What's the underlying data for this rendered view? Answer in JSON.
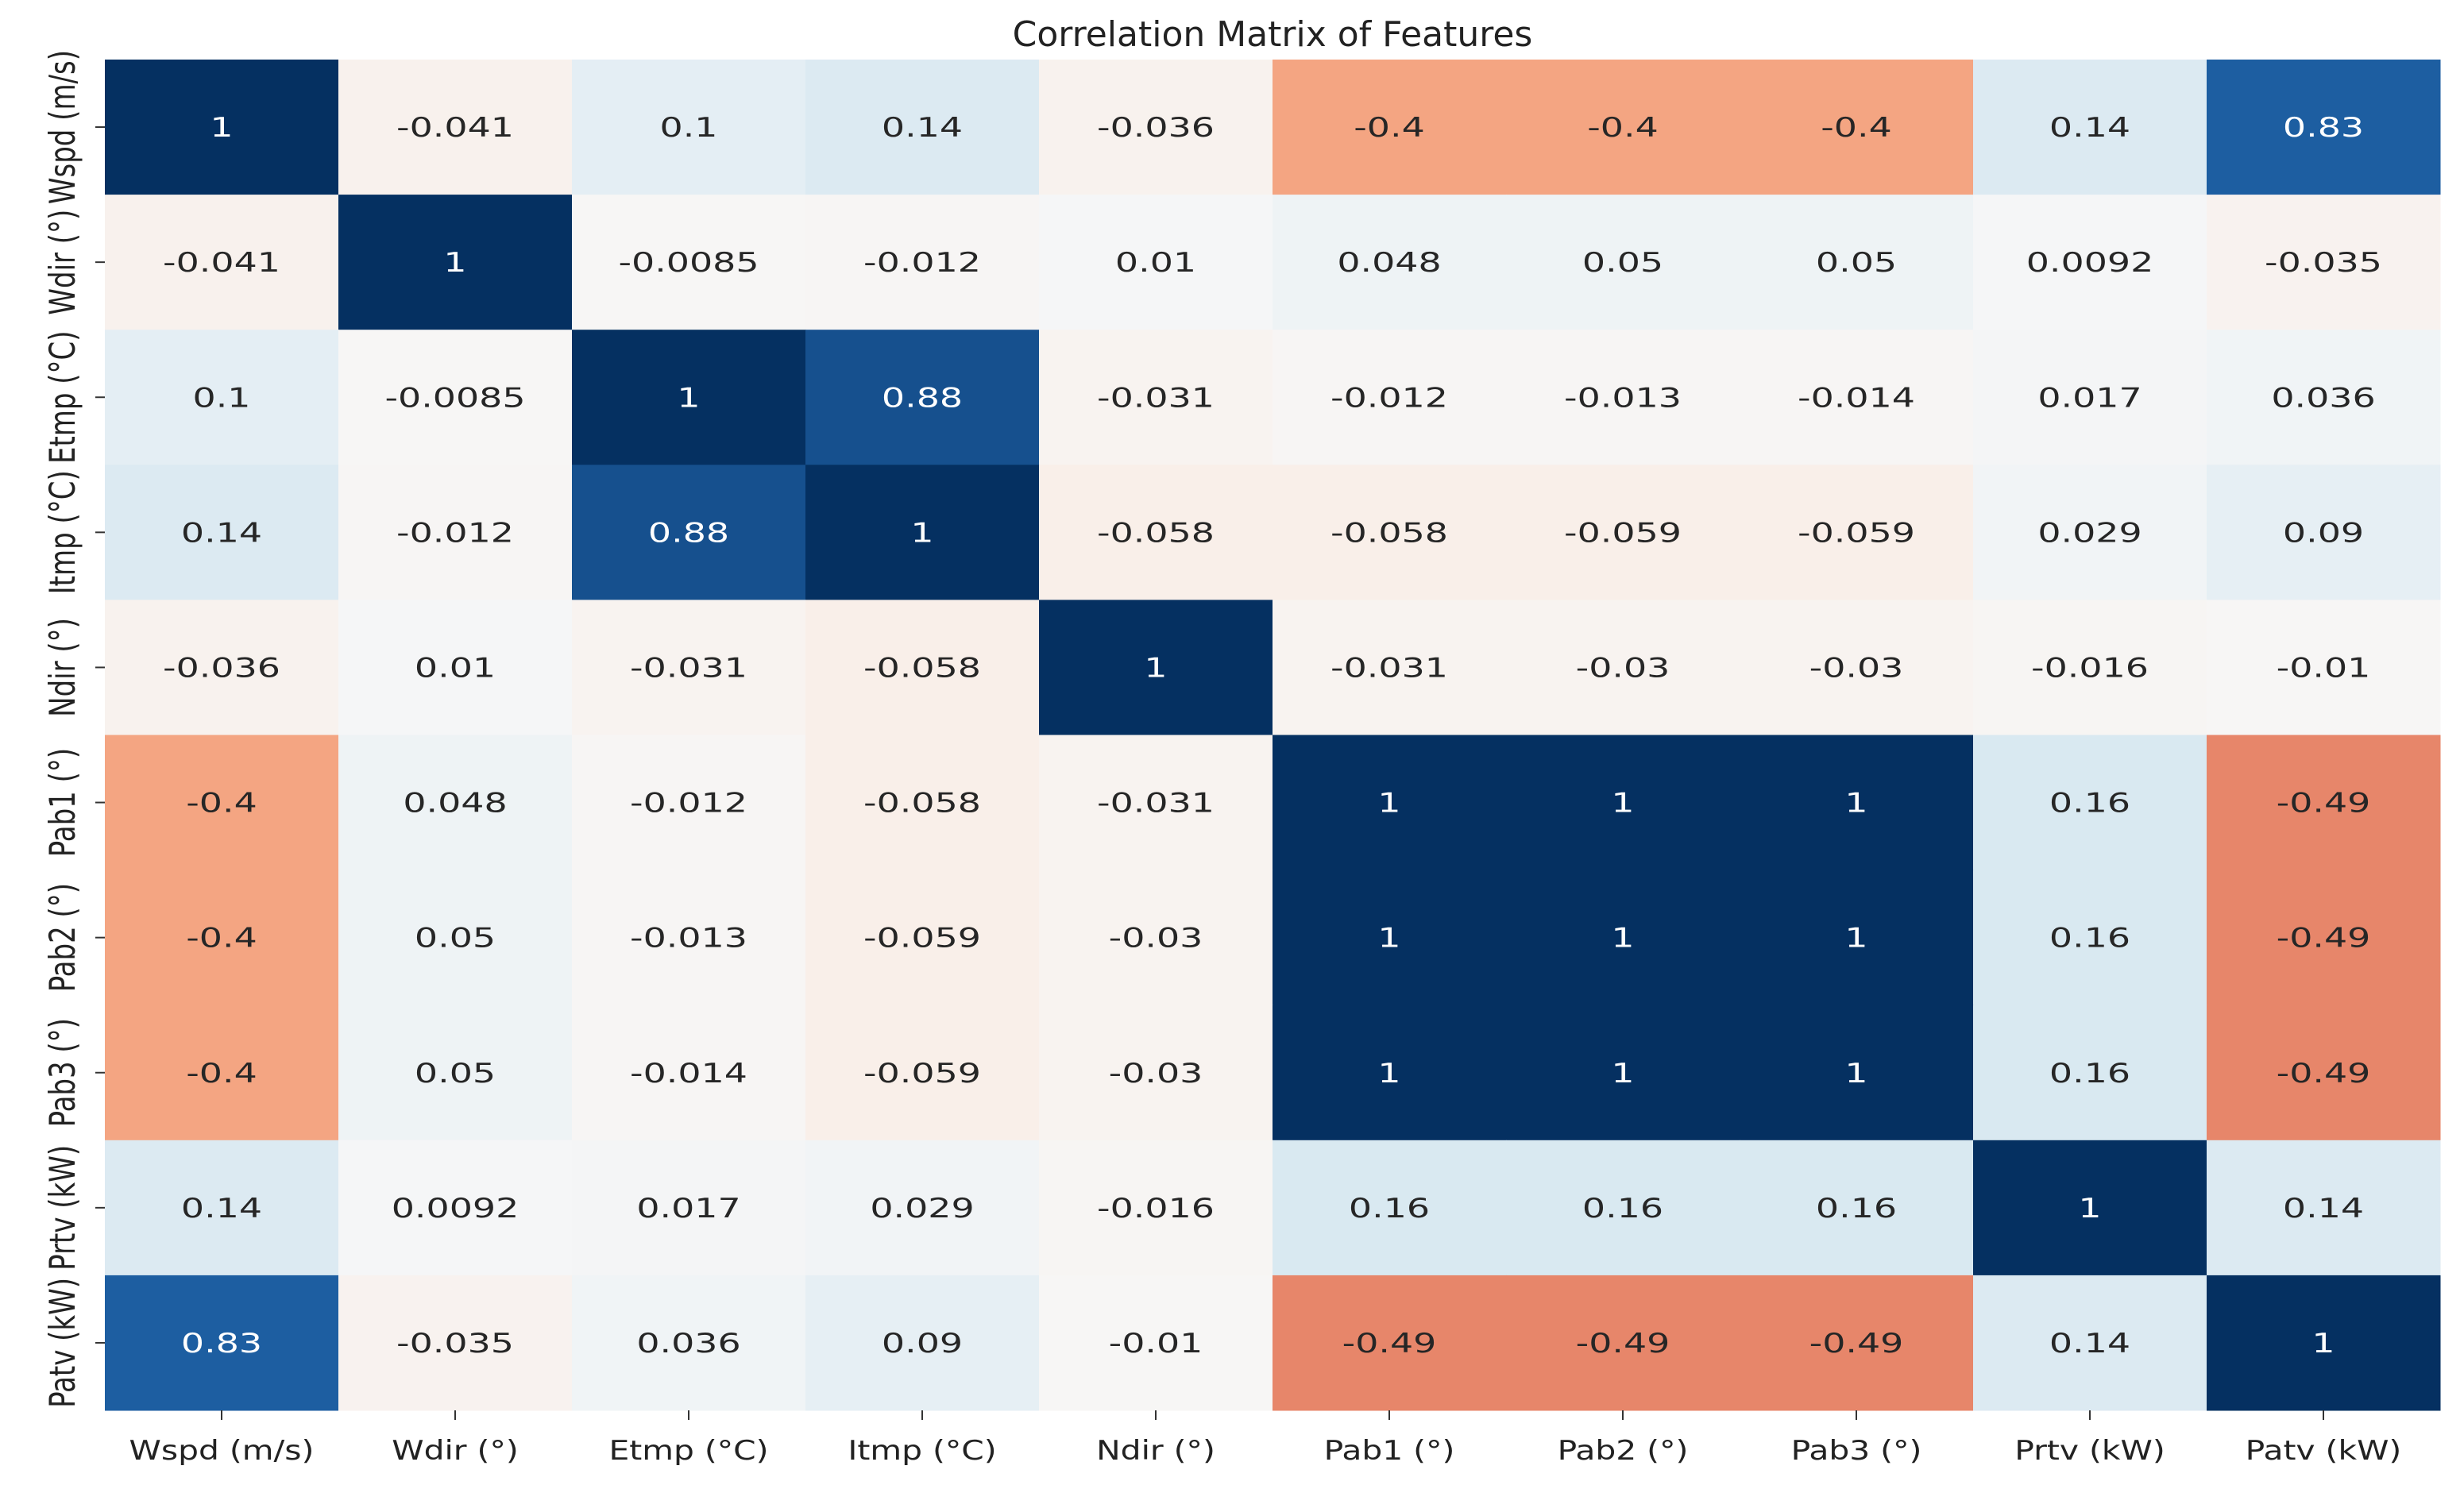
{
  "chart_data": {
    "type": "heatmap",
    "title": "Correlation Matrix of Features",
    "colormap": "RdBu",
    "vmin": -1,
    "vmax": 1,
    "colorbar": false,
    "x_labels": [
      "Wspd (m/s)",
      "Wdir (°)",
      "Etmp (°C)",
      "Itmp (°C)",
      "Ndir (°)",
      "Pab1 (°)",
      "Pab2 (°)",
      "Pab3 (°)",
      "Prtv (kW)",
      "Patv (kW)"
    ],
    "y_labels": [
      "Wspd (m/s)",
      "Wdir (°)",
      "Etmp (°C)",
      "Itmp (°C)",
      "Ndir (°)",
      "Pab1 (°)",
      "Pab2 (°)",
      "Pab3 (°)",
      "Prtv (kW)",
      "Patv (kW)"
    ],
    "values": [
      [
        1,
        -0.041,
        0.1,
        0.14,
        -0.036,
        -0.4,
        -0.4,
        -0.4,
        0.14,
        0.83
      ],
      [
        -0.041,
        1,
        -0.0085,
        -0.012,
        0.01,
        0.048,
        0.05,
        0.05,
        0.0092,
        -0.035
      ],
      [
        0.1,
        -0.0085,
        1,
        0.88,
        -0.031,
        -0.012,
        -0.013,
        -0.014,
        0.017,
        0.036
      ],
      [
        0.14,
        -0.012,
        0.88,
        1,
        -0.058,
        -0.058,
        -0.059,
        -0.059,
        0.029,
        0.09
      ],
      [
        -0.036,
        0.01,
        -0.031,
        -0.058,
        1,
        -0.031,
        -0.03,
        -0.03,
        -0.016,
        -0.01
      ],
      [
        -0.4,
        0.048,
        -0.012,
        -0.058,
        -0.031,
        1,
        1,
        1,
        0.16,
        -0.49
      ],
      [
        -0.4,
        0.05,
        -0.013,
        -0.059,
        -0.03,
        1,
        1,
        1,
        0.16,
        -0.49
      ],
      [
        -0.4,
        0.05,
        -0.014,
        -0.059,
        -0.03,
        1,
        1,
        1,
        0.16,
        -0.49
      ],
      [
        0.14,
        0.0092,
        0.017,
        0.029,
        -0.016,
        0.16,
        0.16,
        0.16,
        1,
        0.14
      ],
      [
        0.83,
        -0.035,
        0.036,
        0.09,
        -0.01,
        -0.49,
        -0.49,
        -0.49,
        0.14,
        1
      ]
    ]
  }
}
